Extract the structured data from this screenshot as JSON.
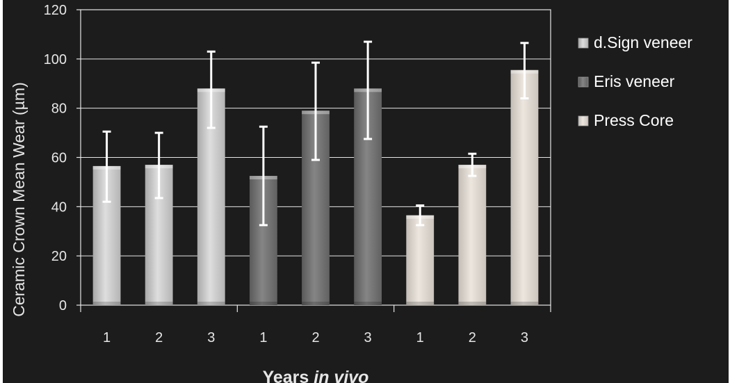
{
  "chart_data": {
    "type": "bar",
    "title": "",
    "xlabel_prefix": "Years ",
    "xlabel_italic": "in vivo",
    "ylabel": "Ceramic Crown Mean Wear (µm)",
    "ylim": [
      0,
      120
    ],
    "yticks": [
      0,
      20,
      40,
      60,
      80,
      100,
      120
    ],
    "grid": true,
    "legend_position": "right",
    "categories": [
      "1",
      "2",
      "3",
      "1",
      "2",
      "3",
      "1",
      "2",
      "3"
    ],
    "series": [
      {
        "name": "d.Sign veneer",
        "color": "#c8c8c8",
        "x": [
          "1",
          "2",
          "3"
        ],
        "values": [
          56.5,
          57,
          88
        ],
        "error_low": [
          42,
          43.5,
          72
        ],
        "error_high": [
          70.5,
          70,
          103
        ]
      },
      {
        "name": "Eris veneer",
        "color": "#707070",
        "x": [
          "1",
          "2",
          "3"
        ],
        "values": [
          52.5,
          79,
          88
        ],
        "error_low": [
          32.5,
          59,
          67.5
        ],
        "error_high": [
          72.5,
          98.5,
          107
        ]
      },
      {
        "name": "Press Core",
        "color": "#ddd6cf",
        "x": [
          "1",
          "2",
          "3"
        ],
        "values": [
          36.5,
          57,
          95.5
        ],
        "error_low": [
          32.5,
          52.5,
          84
        ],
        "error_high": [
          40.5,
          61.5,
          106.5
        ]
      }
    ]
  }
}
